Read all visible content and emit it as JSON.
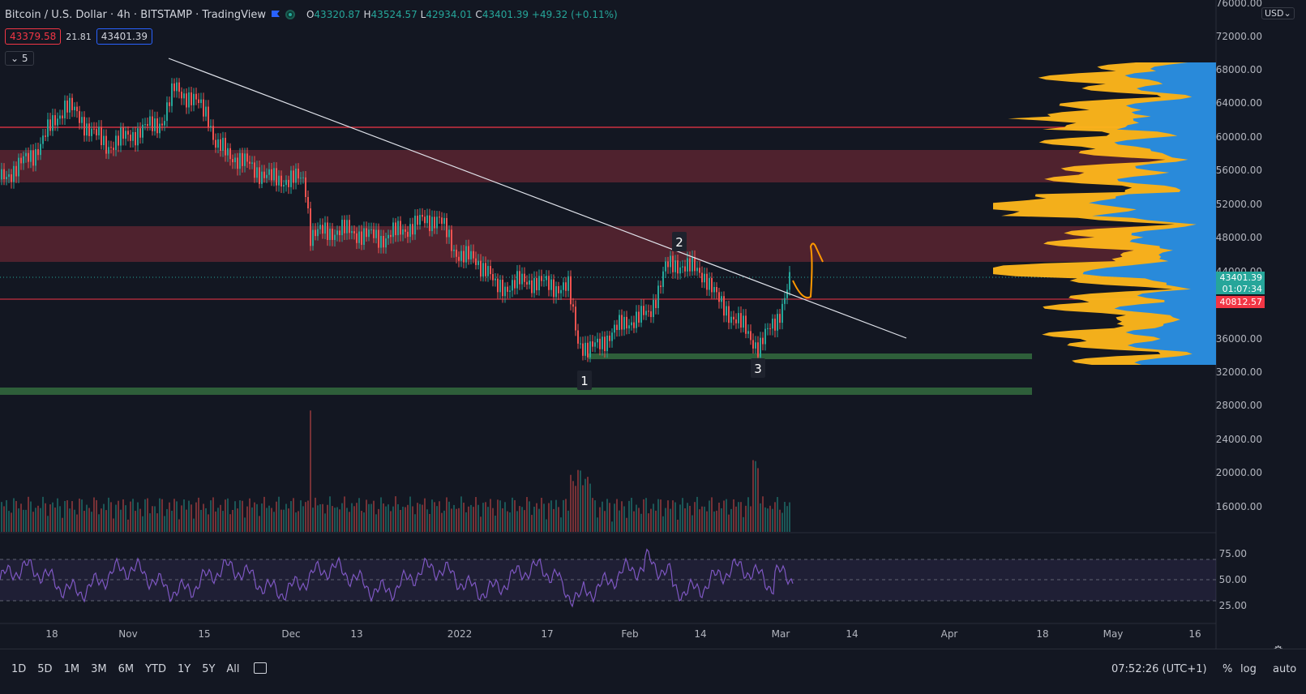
{
  "header": {
    "symbol": "Bitcoin / U.S. Dollar · 4h · BITSTAMP · TradingView",
    "ohlc": {
      "o_label": "O",
      "o": "43320.87",
      "h_label": "H",
      "h": "43524.57",
      "l_label": "L",
      "l": "42934.01",
      "c_label": "C",
      "c": "43401.39",
      "change": "+49.32 (+0.11%)"
    },
    "bid": "43379.58",
    "spread": "21.81",
    "ask": "43401.39",
    "indicator_toggle": "⌄ 5"
  },
  "price_axis": {
    "currency": "USD⌄",
    "labels": [
      "76000.00",
      "72000.00",
      "68000.00",
      "64000.00",
      "60000.00",
      "56000.00",
      "52000.00",
      "48000.00",
      "44000.00",
      "36000.00",
      "32000.00",
      "28000.00",
      "24000.00",
      "20000.00",
      "16000.00"
    ],
    "current_price": "43401.39",
    "countdown": "01:07:34",
    "line_price": "40812.57"
  },
  "rsi_axis": {
    "labels": [
      "75.00",
      "50.00",
      "25.00"
    ]
  },
  "time_axis": {
    "labels": [
      "18",
      "Nov",
      "15",
      "Dec",
      "13",
      "2022",
      "17",
      "Feb",
      "14",
      "Mar",
      "14",
      "Apr",
      "18",
      "May",
      "16"
    ]
  },
  "annotations": {
    "point1": "1",
    "point2": "2",
    "point3": "3"
  },
  "colors": {
    "background": "#131722",
    "up": "#26a69a",
    "down": "#ef5350",
    "zone": "#5b2530",
    "support": "#2e5f3a",
    "resistance_line": "#f23645",
    "trend_line": "#e0e3eb",
    "profile_orange": "#ffb71b",
    "profile_blue": "#1e88e5",
    "rsi_line": "#7e57c2",
    "projection": "#ff9800"
  },
  "bottom_bar": {
    "timeframes": [
      "1D",
      "5D",
      "1M",
      "3M",
      "6M",
      "YTD",
      "1Y",
      "5Y",
      "All"
    ],
    "clock": "07:52:26 (UTC+1)",
    "percent": "%",
    "log": "log",
    "auto": "auto"
  }
}
